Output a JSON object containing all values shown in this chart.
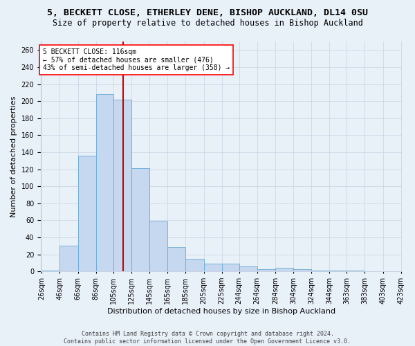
{
  "title_line1": "5, BECKETT CLOSE, ETHERLEY DENE, BISHOP AUCKLAND, DL14 0SU",
  "title_line2": "Size of property relative to detached houses in Bishop Auckland",
  "xlabel": "Distribution of detached houses by size in Bishop Auckland",
  "ylabel": "Number of detached properties",
  "bar_values": [
    1,
    30,
    136,
    208,
    202,
    121,
    59,
    29,
    15,
    9,
    9,
    6,
    3,
    4,
    3,
    1,
    1,
    1,
    0,
    0
  ],
  "bin_edges_sqm": [
    26,
    46,
    66,
    86,
    105,
    125,
    145,
    165,
    185,
    205,
    225,
    244,
    264,
    284,
    304,
    324,
    344,
    363,
    383,
    403,
    423
  ],
  "categories": [
    "26sqm",
    "46sqm",
    "66sqm",
    "86sqm",
    "105sqm",
    "125sqm",
    "145sqm",
    "165sqm",
    "185sqm",
    "205sqm",
    "225sqm",
    "244sqm",
    "264sqm",
    "284sqm",
    "304sqm",
    "324sqm",
    "344sqm",
    "363sqm",
    "383sqm",
    "403sqm",
    "423sqm"
  ],
  "bar_color": "#c5d8ef",
  "bar_edge_color": "#6aaad4",
  "vline_sqm": 116,
  "vline_color": "#cc0000",
  "annotation_text": "5 BECKETT CLOSE: 116sqm\n← 57% of detached houses are smaller (476)\n43% of semi-detached houses are larger (358) →",
  "ylim": [
    0,
    270
  ],
  "yticks": [
    0,
    20,
    40,
    60,
    80,
    100,
    120,
    140,
    160,
    180,
    200,
    220,
    240,
    260
  ],
  "grid_color": "#c8d4e3",
  "bg_color": "#e8f0f8",
  "plot_bg_color": "#e8f0f8",
  "footer_text": "Contains HM Land Registry data © Crown copyright and database right 2024.\nContains public sector information licensed under the Open Government Licence v3.0.",
  "title_fontsize": 9.5,
  "subtitle_fontsize": 8.5,
  "axis_label_fontsize": 8,
  "tick_fontsize": 7,
  "annotation_fontsize": 7,
  "footer_fontsize": 6
}
